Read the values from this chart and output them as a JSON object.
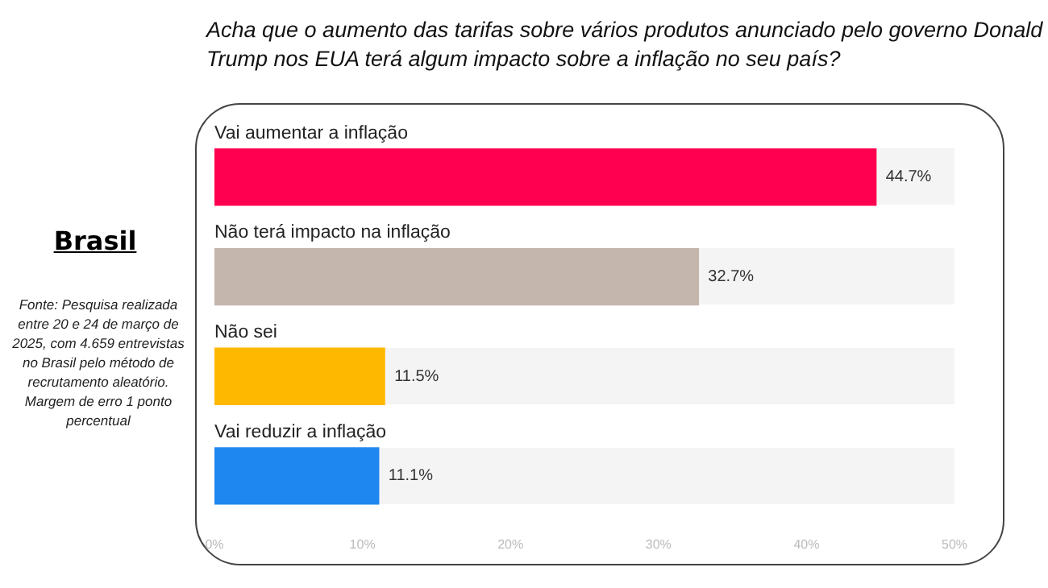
{
  "chart_data": {
    "type": "bar",
    "orientation": "horizontal",
    "title": "Acha que o aumento das tarifas sobre vários produtos anunciado pelo governo Donald Trump nos EUA terá algum impacto sobre a inflação no seu país?",
    "subtitle": "Brasil",
    "annotations": [
      "Fonte: Pesquisa realizada entre 20 e 24 de março de 2025, com 4.659 entrevistas no Brasil pelo método de recrutamento aleatório. Margem de erro 1 ponto percentual"
    ],
    "categories": [
      "Vai aumentar a inflação",
      "Não terá impacto na inflação",
      "Não sei",
      "Vai reduzir a inflação"
    ],
    "values": [
      44.7,
      32.7,
      11.5,
      11.1
    ],
    "colors": [
      "#ff0050",
      "#c4b5ad",
      "#ffb800",
      "#1e88f0"
    ],
    "value_labels": [
      "44.7%",
      "32.7%",
      "11.5%",
      "11.1%"
    ],
    "xlim": [
      0,
      50
    ],
    "xticks": [
      {
        "value": 0,
        "label": "0%"
      },
      {
        "value": 10,
        "label": "10%"
      },
      {
        "value": 20,
        "label": "20%"
      },
      {
        "value": 30,
        "label": "30%"
      },
      {
        "value": 40,
        "label": "40%"
      },
      {
        "value": 50,
        "label": "50%"
      }
    ],
    "grid": false,
    "legend": false
  }
}
